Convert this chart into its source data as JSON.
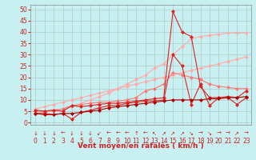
{
  "background_color": "#c8f0f0",
  "grid_color": "#b0c8c8",
  "xlabel": "Vent moyen/en rafales ( km/h )",
  "ylabel_ticks": [
    0,
    5,
    10,
    15,
    20,
    25,
    30,
    35,
    40,
    45,
    50
  ],
  "xlim": [
    -0.5,
    23.5
  ],
  "ylim": [
    -1,
    52
  ],
  "x": [
    0,
    1,
    2,
    3,
    4,
    5,
    6,
    7,
    8,
    9,
    10,
    11,
    12,
    13,
    14,
    15,
    16,
    17,
    18,
    19,
    20,
    21,
    22,
    23
  ],
  "series": [
    {
      "color": "#ffaaaa",
      "linewidth": 0.8,
      "markersize": 2.5,
      "marker": "D",
      "y": [
        6.0,
        7.0,
        8.0,
        9.0,
        10.0,
        11.0,
        12.0,
        13.0,
        14.0,
        15.0,
        16.0,
        17.0,
        18.0,
        19.0,
        20.0,
        21.0,
        22.0,
        23.0,
        24.0,
        25.0,
        26.0,
        27.0,
        28.0,
        29.0
      ]
    },
    {
      "color": "#ffaaaa",
      "linewidth": 0.8,
      "markersize": 2.5,
      "marker": "D",
      "y": [
        4.0,
        4.5,
        5.0,
        6.0,
        7.0,
        8.5,
        10.0,
        11.5,
        13.0,
        15.0,
        17.0,
        19.0,
        21.0,
        24.0,
        26.0,
        30.0,
        33.5,
        37.0,
        38.0,
        38.5,
        39.0,
        39.5,
        39.5,
        39.5
      ]
    },
    {
      "color": "#ff7777",
      "linewidth": 0.8,
      "markersize": 2.5,
      "marker": "D",
      "y": [
        5.0,
        5.0,
        5.5,
        6.0,
        7.5,
        8.0,
        8.5,
        9.0,
        9.0,
        9.5,
        10.0,
        11.0,
        14.0,
        15.0,
        17.0,
        22.0,
        21.0,
        20.0,
        19.0,
        17.0,
        16.0,
        15.5,
        15.0,
        15.0
      ]
    },
    {
      "color": "#dd2222",
      "linewidth": 0.8,
      "markersize": 2.5,
      "marker": "D",
      "y": [
        4.0,
        4.0,
        3.5,
        4.0,
        1.5,
        4.5,
        5.5,
        6.5,
        7.5,
        7.5,
        8.5,
        9.0,
        9.5,
        9.5,
        10.0,
        30.0,
        25.0,
        8.0,
        17.0,
        7.5,
        11.0,
        11.0,
        8.0,
        11.0
      ]
    },
    {
      "color": "#dd2222",
      "linewidth": 0.8,
      "markersize": 2.5,
      "marker": "D",
      "y": [
        5.5,
        5.0,
        5.5,
        5.0,
        7.5,
        7.0,
        7.5,
        8.0,
        8.5,
        8.5,
        9.0,
        9.5,
        10.0,
        10.5,
        11.0,
        49.0,
        40.0,
        38.0,
        16.0,
        11.0,
        11.0,
        11.5,
        11.0,
        14.0
      ]
    },
    {
      "color": "#aa0000",
      "linewidth": 0.8,
      "markersize": 2.5,
      "marker": "D",
      "y": [
        4.0,
        3.5,
        3.5,
        4.0,
        4.0,
        4.5,
        5.0,
        5.5,
        6.5,
        7.0,
        7.5,
        8.0,
        8.5,
        9.0,
        9.5,
        10.0,
        10.0,
        10.0,
        10.0,
        10.5,
        10.5,
        11.0,
        11.0,
        11.5
      ]
    }
  ],
  "wind_arrows": [
    "↓",
    "↓",
    "↓",
    "←",
    "↓",
    "↓",
    "↓",
    "↙",
    "←",
    "←",
    "←",
    "↑",
    "←",
    "↖",
    "↗",
    "↗",
    "↗",
    "↘",
    "→",
    "↘",
    "→",
    "→",
    "↗",
    "→"
  ],
  "xlabel_fontsize": 6.5,
  "tick_fontsize": 5.5,
  "arrow_fontsize": 5.0
}
